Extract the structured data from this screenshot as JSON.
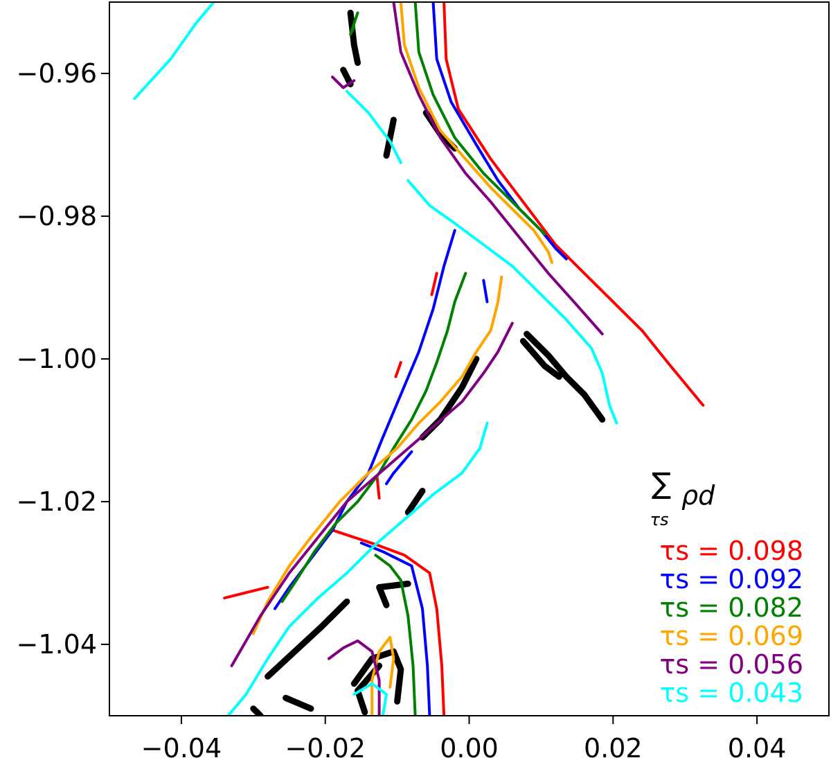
{
  "chart_data": {
    "type": "line",
    "title": "",
    "xlabel": "",
    "ylabel": "",
    "xlim": [
      -0.05,
      0.05
    ],
    "ylim": [
      -1.05,
      -0.95
    ],
    "xticks": [
      -0.04,
      -0.02,
      0.0,
      0.02,
      0.04
    ],
    "yticks": [
      -0.96,
      -0.98,
      -1.0,
      -1.02,
      -1.04
    ],
    "xtick_labels": [
      "−0.04",
      "−0.02",
      "0.00",
      "0.02",
      "0.04"
    ],
    "ytick_labels": [
      "−0.96",
      "−0.98",
      "−1.00",
      "−1.02",
      "−1.04"
    ],
    "grid": false,
    "legend_position": "bottom-right",
    "legend_title": {
      "sum": "∑",
      "subscript": "τs",
      "symbol": "ρd"
    },
    "series": [
      {
        "name": "τs = 0.098",
        "color": "#ff0000",
        "contours": [
          [
            [
              -0.0035,
              -0.95
            ],
            [
              -0.0032,
              -0.958
            ],
            [
              -0.0015,
              -0.965
            ],
            [
              0.003,
              -0.972
            ],
            [
              0.006,
              -0.976
            ],
            [
              0.009,
              -0.98
            ],
            [
              0.012,
              -0.984
            ],
            [
              0.016,
              -0.988
            ],
            [
              0.02,
              -0.992
            ],
            [
              0.024,
              -0.996
            ],
            [
              0.028,
              -1.001
            ],
            [
              0.0325,
              -1.0065
            ]
          ],
          [
            [
              -0.0035,
              -1.05
            ],
            [
              -0.0038,
              -1.043
            ],
            [
              -0.0045,
              -1.035
            ],
            [
              -0.0055,
              -1.03
            ],
            [
              -0.009,
              -1.0275
            ],
            [
              -0.013,
              -1.026
            ],
            [
              -0.016,
              -1.025
            ],
            [
              -0.019,
              -1.024
            ]
          ],
          [
            [
              -0.028,
              -1.032
            ],
            [
              -0.03,
              -1.0325
            ],
            [
              -0.034,
              -1.0335
            ]
          ],
          [
            [
              -0.0125,
              -1.0195
            ],
            [
              -0.0128,
              -1.0165
            ]
          ],
          [
            [
              -0.0095,
              -1.0005
            ],
            [
              -0.0102,
              -1.0025
            ]
          ],
          [
            [
              -0.0045,
              -0.988
            ],
            [
              -0.0052,
              -0.991
            ]
          ]
        ]
      },
      {
        "name": "τs = 0.092",
        "color": "#0000ff",
        "contours": [
          [
            [
              -0.005,
              -0.95
            ],
            [
              -0.0045,
              -0.958
            ],
            [
              -0.0025,
              -0.964
            ],
            [
              0.001,
              -0.97
            ],
            [
              0.004,
              -0.975
            ],
            [
              0.007,
              -0.979
            ],
            [
              0.01,
              -0.982
            ],
            [
              0.012,
              -0.9845
            ],
            [
              0.0135,
              -0.986
            ]
          ],
          [
            [
              -0.0055,
              -1.05
            ],
            [
              -0.0058,
              -1.043
            ],
            [
              -0.0065,
              -1.035
            ],
            [
              -0.008,
              -1.029
            ],
            [
              -0.012,
              -1.027
            ],
            [
              -0.015,
              -1.0258
            ]
          ],
          [
            [
              -0.002,
              -0.982
            ],
            [
              -0.0035,
              -0.987
            ],
            [
              -0.005,
              -0.993
            ],
            [
              -0.007,
              -0.999
            ],
            [
              -0.0095,
              -1.005
            ],
            [
              -0.012,
              -1.011
            ],
            [
              -0.014,
              -1.016
            ],
            [
              -0.017,
              -1.02
            ],
            [
              -0.019,
              -1.024
            ],
            [
              -0.022,
              -1.028
            ],
            [
              -0.025,
              -1.032
            ],
            [
              -0.027,
              -1.035
            ]
          ],
          [
            [
              -0.008,
              -1.013
            ],
            [
              -0.0105,
              -1.016
            ],
            [
              -0.0115,
              -1.0175
            ]
          ],
          [
            [
              0.002,
              -0.989
            ],
            [
              0.0025,
              -0.992
            ]
          ]
        ]
      },
      {
        "name": "τs = 0.082",
        "color": "#008000",
        "contours": [
          [
            [
              -0.0075,
              -0.95
            ],
            [
              -0.007,
              -0.957
            ],
            [
              -0.005,
              -0.963
            ],
            [
              -0.002,
              -0.969
            ],
            [
              0.002,
              -0.974
            ],
            [
              0.006,
              -0.978
            ],
            [
              0.009,
              -0.981
            ],
            [
              0.0105,
              -0.9825
            ]
          ],
          [
            [
              -0.0075,
              -1.05
            ],
            [
              -0.0078,
              -1.043
            ],
            [
              -0.0085,
              -1.036
            ],
            [
              -0.0095,
              -1.031
            ],
            [
              -0.011,
              -1.029
            ],
            [
              -0.013,
              -1.0275
            ]
          ],
          [
            [
              -0.0005,
              -0.988
            ],
            [
              -0.002,
              -0.992
            ],
            [
              -0.003,
              -0.996
            ],
            [
              -0.0045,
              -1.0005
            ],
            [
              -0.006,
              -1.0045
            ],
            [
              -0.008,
              -1.0085
            ],
            [
              -0.0105,
              -1.0125
            ],
            [
              -0.0125,
              -1.016
            ],
            [
              -0.0155,
              -1.02
            ],
            [
              -0.0185,
              -1.023
            ],
            [
              -0.0215,
              -1.027
            ],
            [
              -0.024,
              -1.031
            ],
            [
              -0.026,
              -1.034
            ]
          ],
          [
            [
              -0.0155,
              -0.9515
            ],
            [
              -0.0165,
              -0.9545
            ],
            [
              -0.016,
              -0.9535
            ]
          ]
        ]
      },
      {
        "name": "τs = 0.069",
        "color": "#ffa500",
        "contours": [
          [
            [
              -0.0095,
              -0.95
            ],
            [
              -0.009,
              -0.956
            ],
            [
              -0.007,
              -0.962
            ],
            [
              -0.004,
              -0.968
            ],
            [
              -0.0005,
              -0.972
            ],
            [
              0.003,
              -0.976
            ],
            [
              0.006,
              -0.979
            ],
            [
              0.009,
              -0.982
            ],
            [
              0.011,
              -0.985
            ],
            [
              0.0115,
              -0.9865
            ]
          ],
          [
            [
              0.0045,
              -0.9885
            ],
            [
              0.004,
              -0.992
            ],
            [
              0.003,
              -0.996
            ],
            [
              0.001,
              -0.999
            ],
            [
              -0.001,
              -1.0025
            ],
            [
              -0.004,
              -1.006
            ],
            [
              -0.007,
              -1.009
            ],
            [
              -0.01,
              -1.0125
            ],
            [
              -0.014,
              -1.016
            ],
            [
              -0.018,
              -1.02
            ],
            [
              -0.022,
              -1.025
            ],
            [
              -0.025,
              -1.029
            ],
            [
              -0.028,
              -1.034
            ],
            [
              -0.03,
              -1.0385
            ]
          ],
          [
            [
              -0.0135,
              -1.05
            ],
            [
              -0.0135,
              -1.045
            ],
            [
              -0.0125,
              -1.041
            ],
            [
              -0.011,
              -1.039
            ],
            [
              -0.0105,
              -1.042
            ],
            [
              -0.011,
              -1.046
            ]
          ]
        ]
      },
      {
        "name": "τs = 0.056",
        "color": "#800080",
        "contours": [
          [
            [
              -0.0105,
              -0.95
            ],
            [
              -0.0095,
              -0.957
            ],
            [
              -0.007,
              -0.963
            ],
            [
              -0.004,
              -0.969
            ],
            [
              -0.0005,
              -0.974
            ],
            [
              0.003,
              -0.978
            ],
            [
              0.007,
              -0.983
            ],
            [
              0.011,
              -0.988
            ],
            [
              0.015,
              -0.9925
            ],
            [
              0.0185,
              -0.9965
            ]
          ],
          [
            [
              0.006,
              -0.995
            ],
            [
              0.004,
              -0.999
            ],
            [
              0.002,
              -1.002
            ],
            [
              -0.001,
              -1.006
            ],
            [
              -0.005,
              -1.0095
            ],
            [
              -0.009,
              -1.013
            ],
            [
              -0.013,
              -1.0165
            ],
            [
              -0.017,
              -1.02
            ],
            [
              -0.021,
              -1.025
            ],
            [
              -0.025,
              -1.03
            ],
            [
              -0.029,
              -1.036
            ],
            [
              -0.033,
              -1.043
            ]
          ],
          [
            [
              -0.019,
              -0.9605
            ],
            [
              -0.0175,
              -0.962
            ],
            [
              -0.016,
              -0.961
            ]
          ],
          [
            [
              -0.0125,
              -1.05
            ],
            [
              -0.0125,
              -1.045
            ],
            [
              -0.0135,
              -1.041
            ],
            [
              -0.0155,
              -1.0395
            ],
            [
              -0.0175,
              -1.0405
            ],
            [
              -0.0195,
              -1.042
            ]
          ]
        ]
      },
      {
        "name": "τs = 0.043",
        "color": "#00ffff",
        "contours": [
          [
            [
              -0.0355,
              -0.95
            ],
            [
              -0.038,
              -0.953
            ],
            [
              -0.0415,
              -0.958
            ],
            [
              -0.0465,
              -0.9635
            ]
          ],
          [
            [
              -0.0085,
              -0.975
            ],
            [
              -0.0055,
              -0.9785
            ],
            [
              -0.002,
              -0.981
            ],
            [
              0.002,
              -0.984
            ],
            [
              0.006,
              -0.987
            ],
            [
              0.01,
              -0.991
            ],
            [
              0.0135,
              -0.9945
            ],
            [
              0.017,
              -0.9985
            ],
            [
              0.0185,
              -1.002
            ],
            [
              0.0195,
              -1.0065
            ],
            [
              0.0205,
              -1.009
            ]
          ],
          [
            [
              0.0025,
              -1.009
            ],
            [
              0.0015,
              -1.0125
            ],
            [
              -0.001,
              -1.016
            ],
            [
              -0.005,
              -1.019
            ],
            [
              -0.009,
              -1.0225
            ],
            [
              -0.013,
              -1.026
            ],
            [
              -0.017,
              -1.03
            ],
            [
              -0.021,
              -1.0335
            ],
            [
              -0.025,
              -1.0375
            ],
            [
              -0.028,
              -1.042
            ],
            [
              -0.031,
              -1.047
            ],
            [
              -0.0335,
              -1.05
            ]
          ],
          [
            [
              -0.017,
              -0.9625
            ],
            [
              -0.014,
              -0.9655
            ],
            [
              -0.011,
              -0.9695
            ],
            [
              -0.0095,
              -0.9725
            ]
          ],
          [
            [
              -0.016,
              -1.047
            ],
            [
              -0.0135,
              -1.0455
            ],
            [
              -0.0115,
              -1.047
            ],
            [
              -0.012,
              -1.05
            ]
          ]
        ]
      }
    ],
    "unlabeled_black_contours": [
      [
        [
          -0.0165,
          -0.9515
        ],
        [
          -0.016,
          -0.956
        ],
        [
          -0.0155,
          -0.9585
        ]
      ],
      [
        [
          -0.0175,
          -0.9595
        ],
        [
          -0.0165,
          -0.9615
        ]
      ],
      [
        [
          -0.0105,
          -0.9665
        ],
        [
          -0.0115,
          -0.9715
        ]
      ],
      [
        [
          -0.006,
          -0.9655
        ],
        [
          -0.004,
          -0.9685
        ],
        [
          -0.002,
          -0.9705
        ]
      ],
      [
        [
          0.0075,
          -0.9975
        ],
        [
          0.0105,
          -1.001
        ],
        [
          0.0125,
          -1.0025
        ]
      ],
      [
        [
          0.008,
          -0.9965
        ],
        [
          0.011,
          -0.9995
        ],
        [
          0.0135,
          -1.0025
        ],
        [
          0.016,
          -1.005
        ],
        [
          0.0185,
          -1.0085
        ]
      ],
      [
        [
          0.001,
          -1.0
        ],
        [
          -0.001,
          -1.004
        ],
        [
          -0.004,
          -1.0085
        ],
        [
          -0.0065,
          -1.011
        ]
      ],
      [
        [
          -0.0065,
          -1.0185
        ],
        [
          -0.0085,
          -1.0215
        ]
      ],
      [
        [
          -0.0115,
          -1.0345
        ],
        [
          -0.0125,
          -1.032
        ],
        [
          -0.0085,
          -1.0315
        ]
      ],
      [
        [
          -0.028,
          -1.0445
        ],
        [
          -0.0205,
          -1.0375
        ],
        [
          -0.017,
          -1.034
        ]
      ],
      [
        [
          -0.016,
          -1.0455
        ],
        [
          -0.0135,
          -1.042
        ],
        [
          -0.0105,
          -1.041
        ],
        [
          -0.0095,
          -1.0435
        ],
        [
          -0.01,
          -1.048
        ]
      ],
      [
        [
          -0.0145,
          -1.0495
        ],
        [
          -0.0155,
          -1.0465
        ],
        [
          -0.0125,
          -1.043
        ]
      ],
      [
        [
          -0.0255,
          -1.0475
        ],
        [
          -0.022,
          -1.049
        ]
      ],
      [
        [
          -0.03,
          -1.049
        ],
        [
          -0.029,
          -1.05
        ]
      ]
    ]
  }
}
